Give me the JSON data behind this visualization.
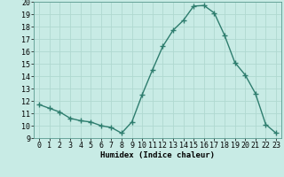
{
  "x": [
    0,
    1,
    2,
    3,
    4,
    5,
    6,
    7,
    8,
    9,
    10,
    11,
    12,
    13,
    14,
    15,
    16,
    17,
    18,
    19,
    20,
    21,
    22,
    23
  ],
  "y": [
    11.7,
    11.4,
    11.1,
    10.6,
    10.4,
    10.3,
    10.0,
    9.85,
    9.4,
    10.3,
    12.5,
    14.5,
    16.4,
    17.7,
    18.5,
    19.65,
    19.7,
    19.1,
    17.3,
    15.1,
    14.1,
    12.6,
    10.1,
    9.4
  ],
  "line_color": "#2e7d6e",
  "marker": "+",
  "marker_size": 4,
  "bg_color": "#c8ebe5",
  "grid_color": "#b0d8d0",
  "xlabel": "Humidex (Indice chaleur)",
  "xlim": [
    -0.5,
    23.5
  ],
  "ylim": [
    9,
    20
  ],
  "yticks": [
    9,
    10,
    11,
    12,
    13,
    14,
    15,
    16,
    17,
    18,
    19,
    20
  ],
  "xticks": [
    0,
    1,
    2,
    3,
    4,
    5,
    6,
    7,
    8,
    9,
    10,
    11,
    12,
    13,
    14,
    15,
    16,
    17,
    18,
    19,
    20,
    21,
    22,
    23
  ],
  "xlabel_fontsize": 6.5,
  "tick_fontsize": 6,
  "line_width": 1.0
}
